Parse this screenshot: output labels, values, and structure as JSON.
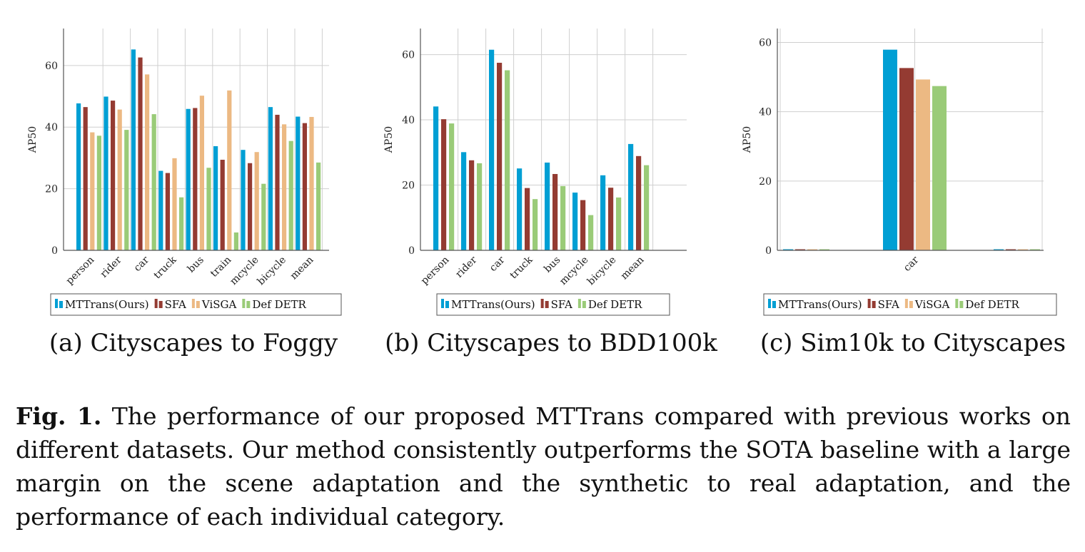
{
  "colors": {
    "MTTrans(Ours)": "#009fd4",
    "SFA": "#943b32",
    "ViSGA": "#ecb983",
    "Def DETR": "#9acb78"
  },
  "chart_data": [
    {
      "type": "bar",
      "subcaption": "(a) Cityscapes to Foggy",
      "ylabel": "AP50",
      "ylim": [
        0,
        72
      ],
      "yticks": [
        0,
        20,
        40,
        60
      ],
      "categories": [
        "person",
        "rider",
        "car",
        "truck",
        "bus",
        "train",
        "mcycle",
        "bicycle",
        "mean"
      ],
      "series": [
        {
          "name": "MTTrans(Ours)",
          "values": [
            47.7,
            49.9,
            65.2,
            25.8,
            45.9,
            33.8,
            32.6,
            46.5,
            43.4
          ]
        },
        {
          "name": "SFA",
          "values": [
            46.5,
            48.6,
            62.6,
            25.1,
            46.2,
            29.4,
            28.3,
            44.0,
            41.3
          ]
        },
        {
          "name": "ViSGA",
          "values": [
            38.3,
            45.7,
            57.1,
            29.9,
            50.2,
            51.9,
            31.9,
            40.9,
            43.3
          ]
        },
        {
          "name": "Def DETR",
          "values": [
            37.2,
            39.1,
            44.2,
            17.2,
            26.8,
            5.8,
            21.6,
            35.5,
            28.5
          ]
        }
      ],
      "legend": [
        "MTTrans(Ours)",
        "SFA",
        "ViSGA",
        "Def DETR"
      ],
      "legend_position": "bottom",
      "grid": true
    },
    {
      "type": "bar",
      "subcaption": "(b) Cityscapes to BDD100k",
      "ylabel": "AP50",
      "ylim": [
        0,
        68
      ],
      "yticks": [
        0,
        20,
        40,
        60
      ],
      "categories": [
        "person",
        "rider",
        "car",
        "truck",
        "bus",
        "mcycle",
        "bicycle",
        "mean"
      ],
      "series": [
        {
          "name": "MTTrans(Ours)",
          "values": [
            44.1,
            30.1,
            61.5,
            25.1,
            26.9,
            17.7,
            23.0,
            32.6
          ]
        },
        {
          "name": "SFA",
          "values": [
            40.2,
            27.6,
            57.5,
            19.1,
            23.4,
            15.4,
            19.2,
            28.9
          ]
        },
        {
          "name": "Def DETR",
          "values": [
            38.9,
            26.7,
            55.2,
            15.7,
            19.7,
            10.8,
            16.2,
            26.1
          ]
        }
      ],
      "legend": [
        "MTTrans(Ours)",
        "SFA",
        "Def DETR"
      ],
      "legend_position": "bottom",
      "grid": true
    },
    {
      "type": "bar",
      "subcaption": "(c) Sim10k to Cityscapes",
      "ylabel": "AP50",
      "ylim": [
        0,
        64
      ],
      "yticks": [
        0,
        20,
        40,
        60
      ],
      "categories": [
        "car"
      ],
      "series": [
        {
          "name": "MTTrans(Ours)",
          "values": [
            57.9
          ]
        },
        {
          "name": "SFA",
          "values": [
            52.6
          ]
        },
        {
          "name": "ViSGA",
          "values": [
            49.3
          ]
        },
        {
          "name": "Def DETR",
          "values": [
            47.4
          ]
        }
      ],
      "legend": [
        "MTTrans(Ours)",
        "SFA",
        "ViSGA",
        "Def DETR"
      ],
      "legend_position": "bottom",
      "grid": true
    }
  ],
  "caption": {
    "label": "Fig. 1.",
    "text": "The performance of our proposed MTTrans compared with previous works on different datasets. Our method consistently outperforms the SOTA baseline with a large margin on the scene adaptation and the synthetic to real adaptation, and the performance of each individual category."
  }
}
